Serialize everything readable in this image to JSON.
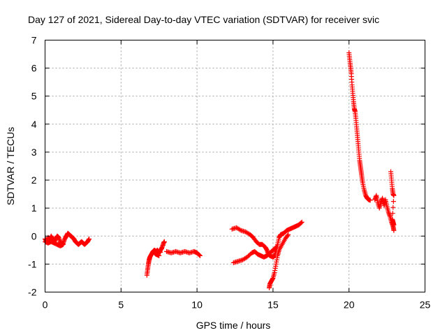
{
  "chart_data": {
    "type": "scatter",
    "title": "Day 127 of 2021, Sidereal Day-to-day VTEC variation (SDTVAR) for receiver svic",
    "xlabel": "GPS time / hours",
    "ylabel": "SDTVAR / TECUs",
    "xlim": [
      0,
      25
    ],
    "ylim": [
      -2,
      7
    ],
    "xticks": [
      "0",
      "5",
      "10",
      "15",
      "20",
      "25"
    ],
    "yticks": [
      "-2",
      "-1",
      "0",
      "1",
      "2",
      "3",
      "4",
      "5",
      "6",
      "7"
    ],
    "grid": true,
    "marker": "+",
    "color": "#ff0000",
    "series": [
      {
        "name": "SDTVAR",
        "segments": [
          [
            [
              0.0,
              -0.1
            ],
            [
              0.1,
              -0.2
            ],
            [
              0.2,
              -0.05
            ],
            [
              0.3,
              -0.15
            ],
            [
              0.4,
              0.0
            ],
            [
              0.5,
              -0.1
            ],
            [
              0.6,
              -0.2
            ],
            [
              0.7,
              -0.1
            ],
            [
              0.8,
              0.0
            ],
            [
              0.9,
              -0.05
            ],
            [
              1.0,
              -0.2
            ],
            [
              1.1,
              -0.3
            ],
            [
              1.2,
              -0.25
            ],
            [
              1.3,
              -0.1
            ],
            [
              1.4,
              0.0
            ],
            [
              1.5,
              0.1
            ],
            [
              1.6,
              0.05
            ],
            [
              1.7,
              0.0
            ],
            [
              1.8,
              -0.05
            ],
            [
              1.9,
              -0.1
            ],
            [
              2.0,
              -0.2
            ],
            [
              2.1,
              -0.25
            ],
            [
              2.2,
              -0.3
            ],
            [
              2.3,
              -0.25
            ],
            [
              2.4,
              -0.2
            ],
            [
              2.5,
              -0.25
            ],
            [
              2.6,
              -0.3
            ],
            [
              2.7,
              -0.25
            ],
            [
              2.8,
              -0.2
            ],
            [
              2.9,
              -0.1
            ]
          ],
          [
            [
              0.0,
              -0.2
            ],
            [
              0.2,
              -0.25
            ],
            [
              0.4,
              -0.2
            ],
            [
              0.6,
              -0.25
            ],
            [
              0.8,
              -0.3
            ],
            [
              1.0,
              -0.35
            ],
            [
              1.2,
              -0.3
            ]
          ],
          [
            [
              6.7,
              -1.4
            ],
            [
              6.75,
              -1.2
            ],
            [
              6.8,
              -1.0
            ],
            [
              6.85,
              -0.85
            ],
            [
              6.9,
              -0.75
            ],
            [
              7.0,
              -0.65
            ],
            [
              7.1,
              -0.55
            ],
            [
              7.2,
              -0.5
            ],
            [
              7.3,
              -0.55
            ],
            [
              7.4,
              -0.5
            ],
            [
              7.5,
              -0.6
            ],
            [
              7.6,
              -0.5
            ],
            [
              7.7,
              -0.4
            ],
            [
              7.8,
              -0.25
            ],
            [
              7.85,
              -0.2
            ],
            [
              7.5,
              -0.7
            ],
            [
              7.3,
              -0.65
            ],
            [
              7.2,
              -0.6
            ]
          ],
          [
            [
              8.0,
              -0.55
            ],
            [
              8.3,
              -0.6
            ],
            [
              8.6,
              -0.55
            ],
            [
              8.9,
              -0.6
            ],
            [
              9.2,
              -0.55
            ],
            [
              9.5,
              -0.6
            ],
            [
              9.8,
              -0.55
            ],
            [
              10.0,
              -0.6
            ],
            [
              10.2,
              -0.7
            ]
          ],
          [
            [
              12.3,
              0.25
            ],
            [
              12.6,
              0.3
            ],
            [
              12.9,
              0.2
            ],
            [
              13.2,
              0.15
            ],
            [
              13.5,
              0.05
            ],
            [
              13.7,
              -0.05
            ],
            [
              13.9,
              -0.2
            ],
            [
              14.1,
              -0.3
            ],
            [
              14.3,
              -0.3
            ],
            [
              14.5,
              -0.4
            ],
            [
              14.6,
              -0.5
            ],
            [
              14.7,
              -0.65
            ],
            [
              14.8,
              -0.7
            ],
            [
              15.0,
              -0.75
            ],
            [
              15.1,
              -0.7
            ],
            [
              15.2,
              -0.5
            ],
            [
              15.3,
              -0.3
            ],
            [
              15.4,
              -0.05
            ],
            [
              15.5,
              0.05
            ],
            [
              15.7,
              0.1
            ],
            [
              15.9,
              0.2
            ],
            [
              16.1,
              0.25
            ],
            [
              16.3,
              0.3
            ],
            [
              16.5,
              0.35
            ],
            [
              16.7,
              0.4
            ],
            [
              16.9,
              0.5
            ]
          ],
          [
            [
              12.4,
              -0.95
            ],
            [
              12.7,
              -0.9
            ],
            [
              13.0,
              -0.85
            ],
            [
              13.3,
              -0.75
            ],
            [
              13.6,
              -0.6
            ],
            [
              13.8,
              -0.55
            ],
            [
              14.0,
              -0.65
            ],
            [
              14.2,
              -0.7
            ],
            [
              14.4,
              -0.75
            ],
            [
              14.6,
              -0.7
            ],
            [
              14.8,
              -0.6
            ],
            [
              15.0,
              -0.5
            ],
            [
              15.2,
              -0.4
            ]
          ],
          [
            [
              14.75,
              -1.85
            ],
            [
              14.8,
              -1.7
            ],
            [
              14.9,
              -1.6
            ],
            [
              15.0,
              -1.5
            ],
            [
              15.1,
              -1.3
            ],
            [
              15.2,
              -1.0
            ],
            [
              15.3,
              -0.7
            ],
            [
              15.4,
              -0.5
            ],
            [
              15.6,
              -0.3
            ],
            [
              15.8,
              -0.1
            ],
            [
              16.0,
              0.05
            ]
          ],
          [
            [
              20.0,
              6.55
            ],
            [
              20.05,
              6.3
            ],
            [
              20.1,
              6.05
            ],
            [
              20.15,
              5.8
            ],
            [
              20.2,
              5.4
            ],
            [
              20.25,
              5.1
            ],
            [
              20.3,
              4.8
            ],
            [
              20.35,
              4.55
            ],
            [
              20.4,
              4.45
            ],
            [
              20.45,
              4.2
            ],
            [
              20.5,
              3.9
            ],
            [
              20.55,
              3.6
            ],
            [
              20.6,
              3.3
            ],
            [
              20.65,
              3.0
            ],
            [
              20.7,
              2.7
            ],
            [
              20.75,
              2.5
            ],
            [
              20.8,
              2.3
            ],
            [
              20.85,
              2.1
            ],
            [
              20.9,
              1.9
            ],
            [
              21.0,
              1.65
            ],
            [
              21.1,
              1.45
            ],
            [
              21.2,
              1.35
            ],
            [
              21.3,
              1.3
            ],
            [
              21.4,
              1.28
            ]
          ],
          [
            [
              21.7,
              1.3
            ],
            [
              21.8,
              1.45
            ],
            [
              21.9,
              1.2
            ],
            [
              22.0,
              1.0
            ],
            [
              22.1,
              1.2
            ],
            [
              22.2,
              1.35
            ],
            [
              22.3,
              1.1
            ],
            [
              22.4,
              1.3
            ],
            [
              22.5,
              1.05
            ],
            [
              22.6,
              0.85
            ],
            [
              22.7,
              0.7
            ],
            [
              22.8,
              0.5
            ],
            [
              22.9,
              0.35
            ],
            [
              22.95,
              0.2
            ]
          ],
          [
            [
              22.75,
              2.3
            ],
            [
              22.8,
              2.0
            ],
            [
              22.85,
              1.7
            ],
            [
              22.9,
              1.5
            ],
            [
              22.95,
              1.45
            ],
            [
              22.85,
              0.6
            ],
            [
              22.9,
              0.5
            ],
            [
              22.95,
              0.4
            ]
          ]
        ]
      }
    ]
  }
}
